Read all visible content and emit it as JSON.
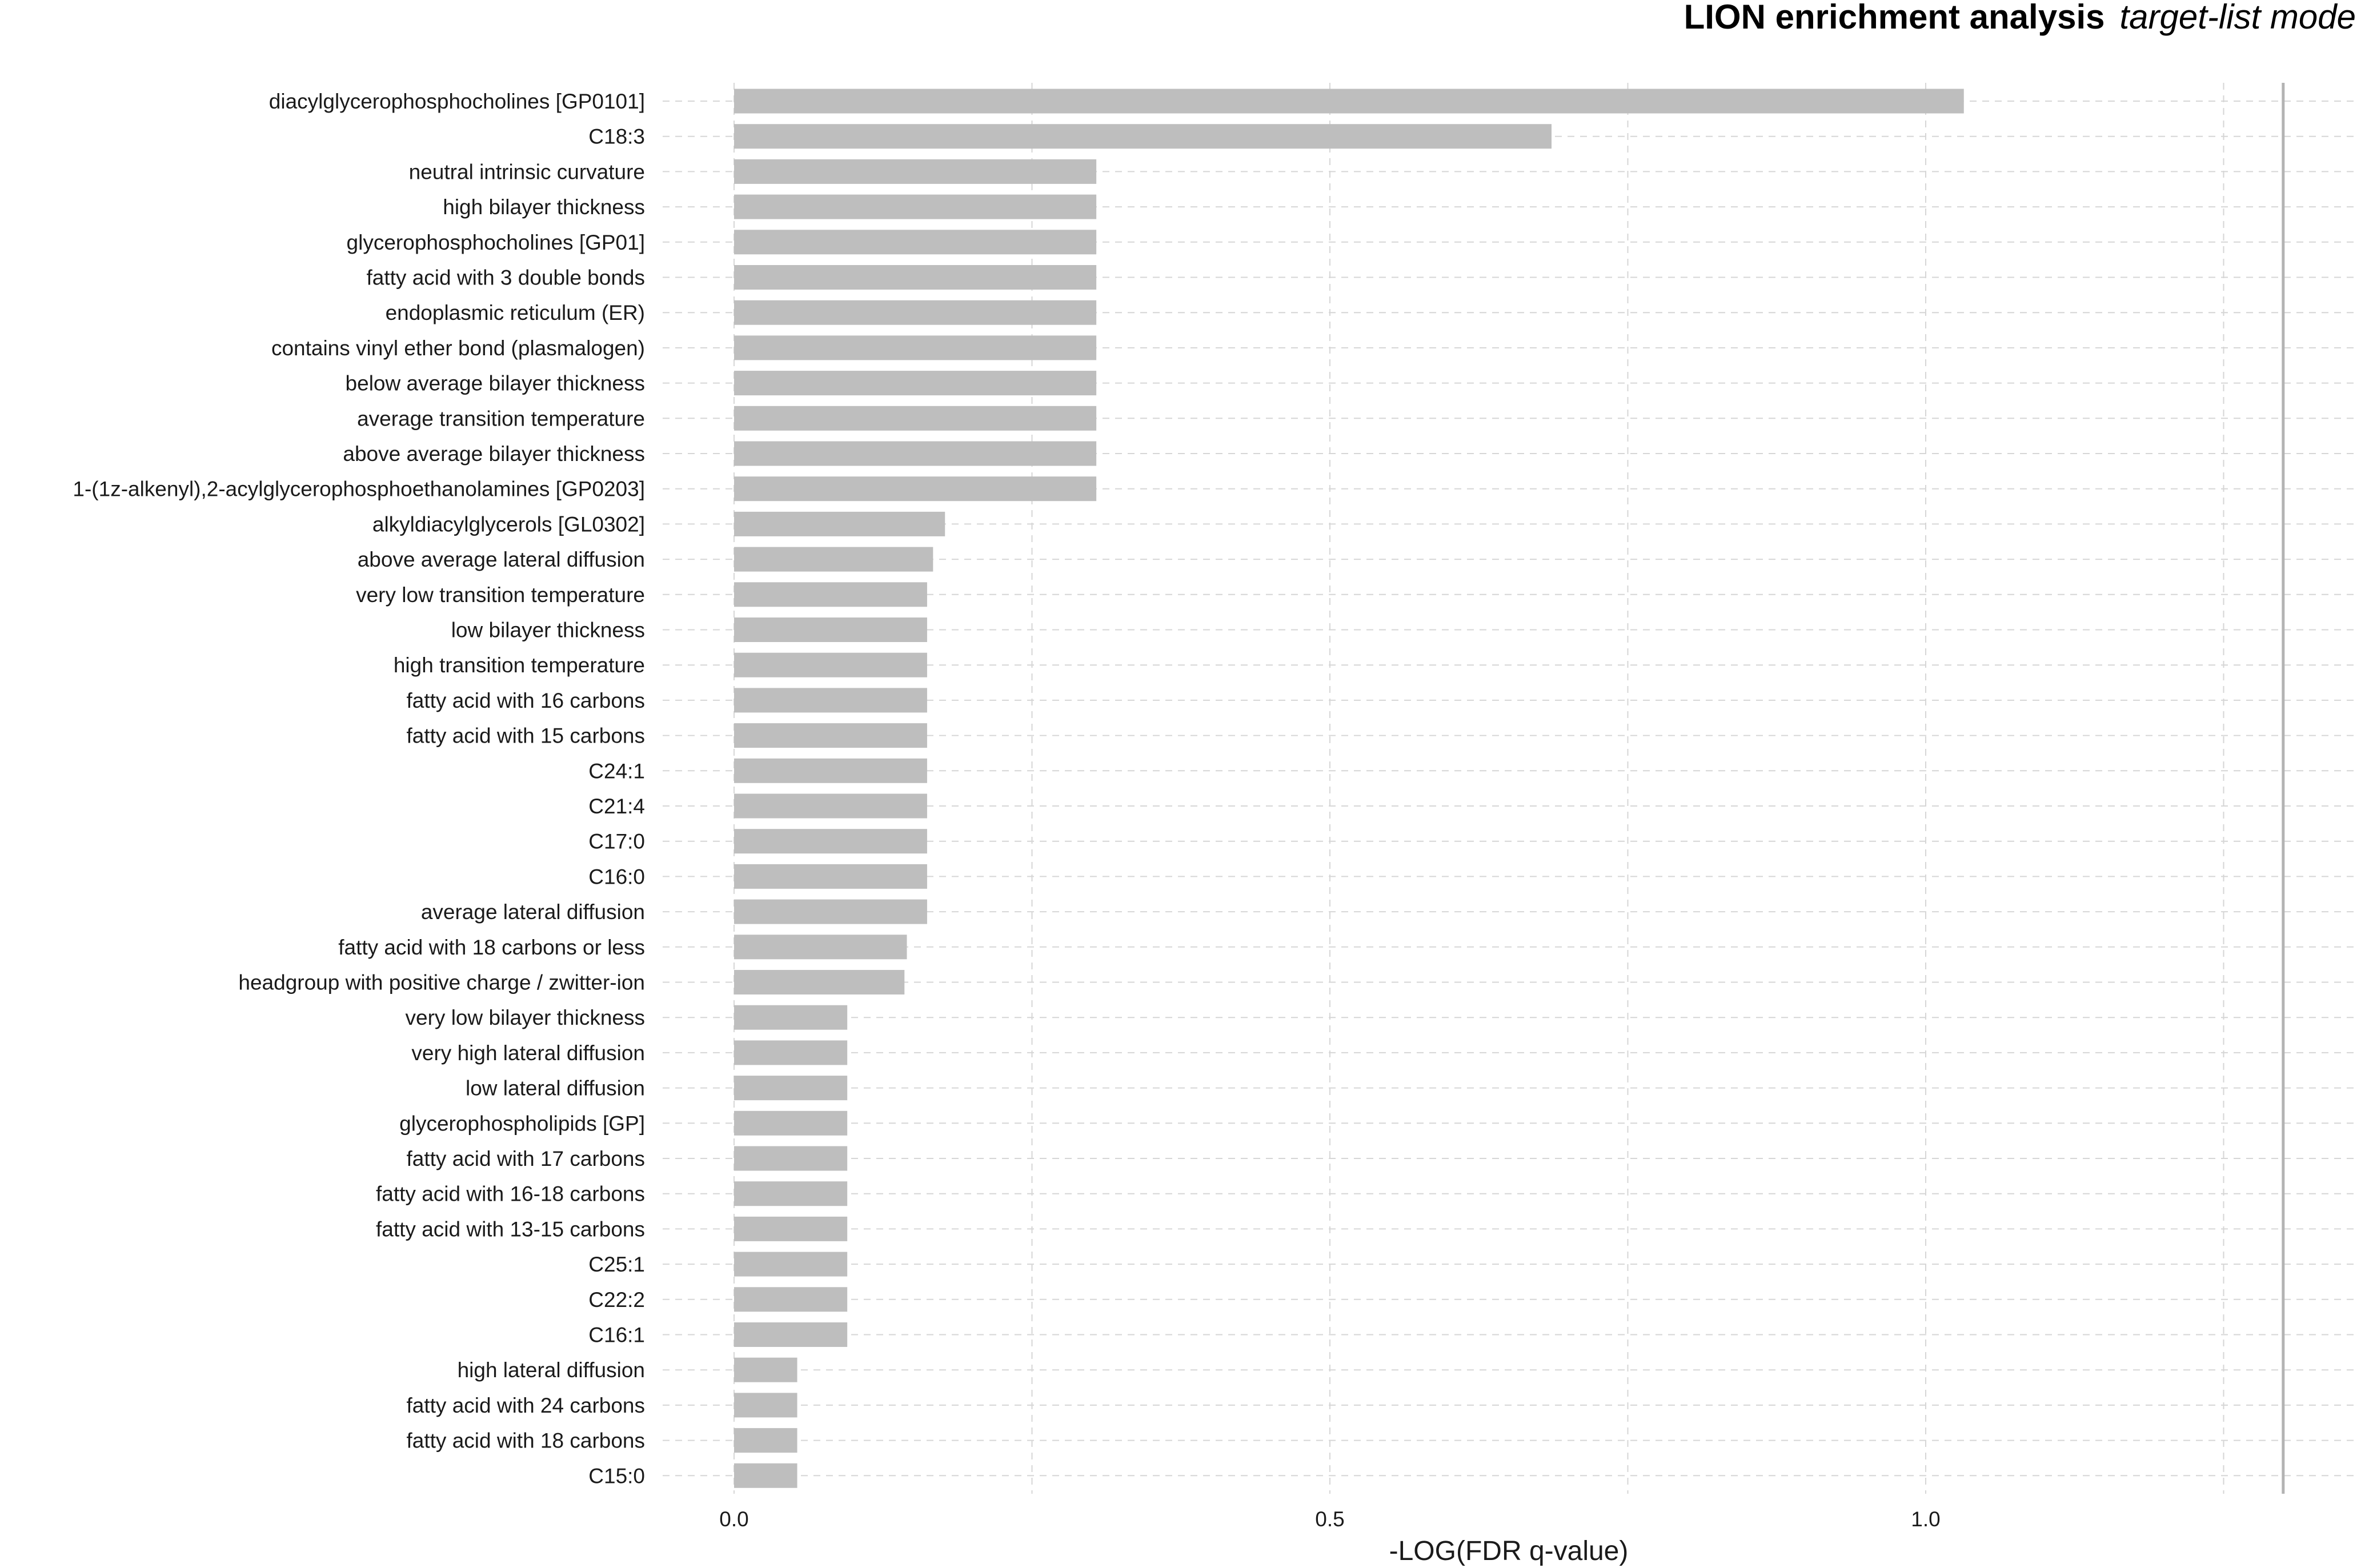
{
  "chart_data": {
    "type": "bar",
    "orientation": "horizontal",
    "title": "LION enrichment analysis",
    "subtitle": "target-list mode",
    "xlabel": "-LOG(FDR q-value)",
    "ylabel": "",
    "xlim": [
      -0.075,
      1.32
    ],
    "xticks": [
      0.0,
      0.5,
      1.0
    ],
    "xtick_labels": [
      "0.0",
      "0.5",
      "1.0"
    ],
    "grid": true,
    "legend": "none",
    "reference_line_x": 1.3,
    "colors": {
      "bar": "#bebebe",
      "grid": "#d6d6d6",
      "reference_line": "#b3b3b3"
    },
    "categories": [
      "diacylglycerophosphocholines [GP0101]",
      "C18:3",
      "neutral intrinsic curvature",
      "high bilayer thickness",
      "glycerophosphocholines [GP01]",
      "fatty acid with 3 double bonds",
      "endoplasmic reticulum (ER)",
      "contains vinyl ether bond (plasmalogen)",
      "below average bilayer thickness",
      "average transition temperature",
      "above average bilayer thickness",
      "1-(1z-alkenyl),2-acylglycerophosphoethanolamines [GP0203]",
      "alkyldiacylglycerols [GL0302]",
      "above average lateral diffusion",
      "very low transition temperature",
      "low bilayer thickness",
      "high transition temperature",
      "fatty acid with 16 carbons",
      "fatty acid with 15 carbons",
      "C24:1",
      "C21:4",
      "C17:0",
      "C16:0",
      "average lateral diffusion",
      "fatty acid with 18 carbons or less",
      "headgroup with positive charge / zwitter-ion",
      "very low bilayer thickness",
      "very high lateral diffusion",
      "low lateral diffusion",
      "glycerophospholipids [GP]",
      "fatty acid with 17 carbons",
      "fatty acid with 16-18 carbons",
      "fatty acid with 13-15 carbons",
      "C25:1",
      "C22:2",
      "C16:1",
      "high lateral diffusion",
      "fatty acid with 24 carbons",
      "fatty acid with 18 carbons",
      "C15:0"
    ],
    "values": [
      1.032,
      0.686,
      0.304,
      0.304,
      0.304,
      0.304,
      0.304,
      0.304,
      0.304,
      0.304,
      0.304,
      0.304,
      0.177,
      0.167,
      0.162,
      0.162,
      0.162,
      0.162,
      0.162,
      0.162,
      0.162,
      0.162,
      0.162,
      0.162,
      0.145,
      0.143,
      0.095,
      0.095,
      0.095,
      0.095,
      0.095,
      0.095,
      0.095,
      0.095,
      0.095,
      0.095,
      0.053,
      0.053,
      0.053,
      0.053
    ]
  }
}
